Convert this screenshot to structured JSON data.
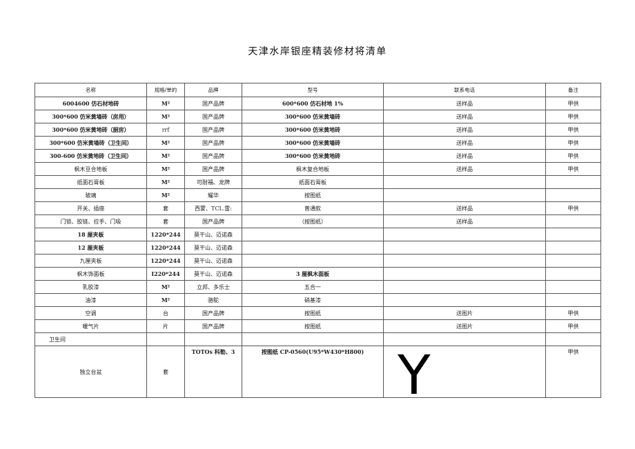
{
  "title": "天津水岸银座精装修材将清单",
  "headers": [
    "名称",
    "规格/单的",
    "品牌",
    "型号",
    "联系电话",
    "备注"
  ],
  "rows": [
    [
      "6004600 仿石材地砖",
      "M²",
      "国产品牌",
      "600*600 仿石材地 1%",
      "送样品",
      "甲供"
    ],
    [
      "300*600 仿米黄墙砖（房用）",
      "M²",
      "国产品牌",
      "300*600 仿米黄墙砖",
      "送样品",
      "甲供"
    ],
    [
      "300*600 仿米黄地砖（厨房）",
      "rrf",
      "国产品牌",
      "300*600 仿米黄地砖",
      "送样品",
      "甲供"
    ],
    [
      "300*600 仿米黄墙砖（卫生间）",
      "M²",
      "国产品牌",
      "300*600 仿米黄墙砖",
      "送样品",
      "甲供"
    ],
    [
      "300-600 仿米黄地砖（卫生间）",
      "M²",
      "国产品牌",
      "300*600 仿米黄地砖",
      "送样品",
      "甲供"
    ],
    [
      "枫木豆合地板",
      "M²",
      "国产品牌",
      "枫木复合地板",
      "送样品",
      "甲供"
    ],
    [
      "纸面石膏板",
      "M²",
      "可耐福、龙牌",
      "纸面石膏板",
      "",
      ""
    ],
    [
      "玻璃",
      "M²",
      "耀华",
      "按图纸",
      "",
      ""
    ],
    [
      "开关、插座",
      "套",
      "西蒙、TCL.雷:",
      "普通款",
      "送样品",
      "甲供"
    ],
    [
      "门锁、胶链、拉手、门吸",
      "套",
      "国产品牌",
      "（按图纸）",
      "送样品",
      ""
    ],
    [
      "18 厘夹板",
      "1220*244",
      "莫干山、迈诺森",
      "",
      "",
      ""
    ],
    [
      "12 厘夹板",
      "1220*244",
      "莫干山、迈诺森",
      "",
      "",
      ""
    ],
    [
      "九厘夹板",
      "1220*244",
      "莫干山、迈诺森",
      "",
      "",
      ""
    ],
    [
      "枫木饰面板",
      "I220*244",
      "莫干山、迈诺森",
      "3 厘枫木面板",
      "",
      ""
    ],
    [
      "乳胶漆",
      "M²",
      "立邦、多乐士",
      "五合一",
      "",
      ""
    ],
    [
      "油漆",
      "M²",
      "骆駝",
      "硝基漆",
      "",
      ""
    ],
    [
      "空调",
      "台",
      "国产品牌",
      "按图纸",
      "送图片",
      "甲供"
    ],
    [
      "暖气片",
      "片",
      "国产品牌",
      "按图纸",
      "送图片",
      "甲供"
    ]
  ],
  "section": "卫生间",
  "last": {
    "name": "独立台盆",
    "unit": "套",
    "brand": "TOTOs 科勒、3",
    "model": "按图纸 CP-0560(U95*W430*H800)",
    "contact": "Y",
    "note": "甲供"
  }
}
